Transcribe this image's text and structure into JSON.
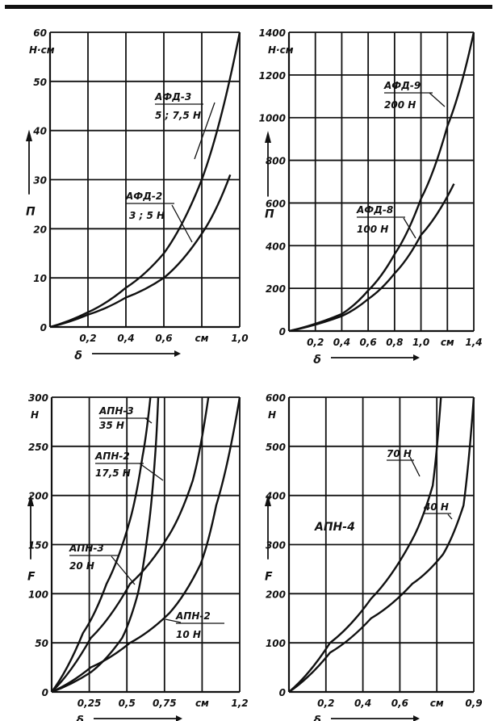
{
  "chart_data": [
    {
      "type": "line",
      "x": [
        0,
        0.2,
        0.4,
        0.6,
        0.8,
        1.0
      ],
      "x_tick_labels": [
        "0",
        "0,2",
        "0,4",
        "0,6",
        "см",
        "1,0"
      ],
      "y_tick_labels": [
        "0",
        "10",
        "20",
        "30",
        "40",
        "50",
        "60"
      ],
      "xlim": [
        0,
        1.0
      ],
      "ylim": [
        0,
        60
      ],
      "xlabel": "δ",
      "ylabel": "П",
      "yunit": "Н·см",
      "series": [
        {
          "name": "АФД-3",
          "sub": "5 ; 7,5 Н",
          "points": [
            [
              0,
              0
            ],
            [
              0.2,
              3
            ],
            [
              0.4,
              8
            ],
            [
              0.6,
              15
            ],
            [
              0.8,
              30
            ],
            [
              1.0,
              60
            ]
          ]
        },
        {
          "name": "АФД-2",
          "sub": "3 ; 5 Н",
          "points": [
            [
              0,
              0
            ],
            [
              0.2,
              2.5
            ],
            [
              0.4,
              6
            ],
            [
              0.6,
              10
            ],
            [
              0.8,
              19
            ],
            [
              0.95,
              31
            ]
          ]
        }
      ]
    },
    {
      "type": "line",
      "x": [
        0,
        0.2,
        0.4,
        0.6,
        0.8,
        1.0,
        1.2,
        1.4
      ],
      "x_tick_labels": [
        "0",
        "0,2",
        "0,4",
        "0,6",
        "0,8",
        "1,0",
        "см",
        "1,4"
      ],
      "y_tick_labels": [
        "0",
        "200",
        "400",
        "600",
        "800",
        "1000",
        "1200",
        "1400"
      ],
      "xlim": [
        0,
        1.4
      ],
      "ylim": [
        0,
        1400
      ],
      "xlabel": "δ",
      "ylabel": "П",
      "yunit": "Н·см",
      "series": [
        {
          "name": "АФД-9",
          "sub": "200 Н",
          "points": [
            [
              0,
              0
            ],
            [
              0.4,
              80
            ],
            [
              0.6,
              190
            ],
            [
              0.8,
              360
            ],
            [
              1.0,
              620
            ],
            [
              1.2,
              960
            ],
            [
              1.4,
              1400
            ]
          ]
        },
        {
          "name": "АФД-8",
          "sub": "100 Н",
          "points": [
            [
              0,
              0
            ],
            [
              0.4,
              70
            ],
            [
              0.6,
              150
            ],
            [
              0.8,
              270
            ],
            [
              1.0,
              450
            ],
            [
              1.25,
              690
            ]
          ]
        }
      ]
    },
    {
      "type": "line",
      "x": [
        0,
        0.25,
        0.5,
        0.75,
        1.0,
        1.2
      ],
      "x_tick_labels": [
        "0",
        "0,25",
        "0,5",
        "0,75",
        "см",
        "1,2"
      ],
      "y_tick_labels": [
        "0",
        "50",
        "100",
        "150",
        "200",
        "250",
        "300"
      ],
      "xlim": [
        0,
        1.2
      ],
      "ylim": [
        0,
        300
      ],
      "xlabel": "δ",
      "ylabel": "F",
      "yunit": "Н",
      "series": [
        {
          "name": "АПН-3",
          "sub": "35 Н",
          "points": [
            [
              0,
              0
            ],
            [
              0.2,
              60
            ],
            [
              0.35,
              110
            ],
            [
              0.5,
              175
            ],
            [
              0.58,
              240
            ],
            [
              0.63,
              300
            ]
          ]
        },
        {
          "name": "АПН-2",
          "sub": "17,5 Н",
          "points": [
            [
              0,
              0
            ],
            [
              0.25,
              20
            ],
            [
              0.45,
              55
            ],
            [
              0.55,
              100
            ],
            [
              0.62,
              170
            ],
            [
              0.66,
              240
            ],
            [
              0.68,
              300
            ]
          ]
        },
        {
          "name": "АПН-3",
          "sub": "20 Н",
          "points": [
            [
              0,
              0
            ],
            [
              0.25,
              55
            ],
            [
              0.5,
              110
            ],
            [
              0.75,
              160
            ],
            [
              0.9,
              215
            ],
            [
              1.0,
              300
            ]
          ]
        },
        {
          "name": "АПН-2",
          "sub": "10 Н",
          "points": [
            [
              0,
              0
            ],
            [
              0.25,
              25
            ],
            [
              0.5,
              50
            ],
            [
              0.75,
              80
            ],
            [
              0.95,
              130
            ],
            [
              1.05,
              190
            ],
            [
              1.2,
              300
            ]
          ]
        }
      ]
    },
    {
      "type": "line",
      "x": [
        0,
        0.2,
        0.4,
        0.6,
        0.8,
        0.9
      ],
      "x_tick_labels": [
        "0",
        "0,2",
        "0,4",
        "0,6",
        "см",
        "0,9"
      ],
      "y_tick_labels": [
        "0",
        "100",
        "200",
        "300",
        "400",
        "500",
        "600"
      ],
      "xlim": [
        0,
        0.9
      ],
      "ylim": [
        0,
        600
      ],
      "xlabel": "δ",
      "ylabel": "F",
      "yunit": "Н",
      "annotation": "АПН-4",
      "series": [
        {
          "name": "",
          "sub": "70 Н",
          "points": [
            [
              0,
              0
            ],
            [
              0.2,
              100
            ],
            [
              0.4,
              190
            ],
            [
              0.6,
              310
            ],
            [
              0.7,
              420
            ],
            [
              0.74,
              600
            ]
          ]
        },
        {
          "name": "",
          "sub": "40 Н",
          "points": [
            [
              0,
              0
            ],
            [
              0.2,
              80
            ],
            [
              0.4,
              150
            ],
            [
              0.6,
              220
            ],
            [
              0.75,
              280
            ],
            [
              0.85,
              380
            ],
            [
              0.9,
              600
            ]
          ]
        }
      ]
    }
  ]
}
